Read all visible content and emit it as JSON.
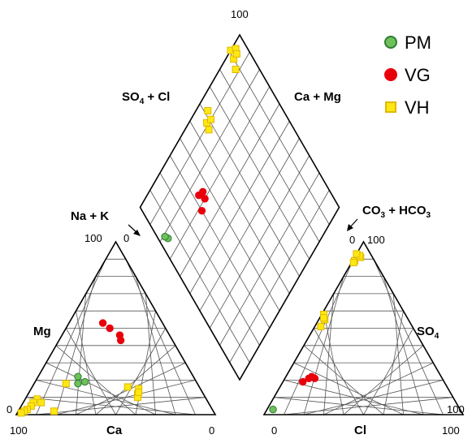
{
  "chart_data": {
    "type": "scatter",
    "title": "",
    "legend": {
      "position": "top-right",
      "items": [
        {
          "label": "PM",
          "marker": "circle",
          "color": "#6ec15a",
          "edge": "#2e7d32"
        },
        {
          "label": "VG",
          "marker": "circle",
          "color": "#e8000b",
          "edge": "#e8000b"
        },
        {
          "label": "VH",
          "marker": "square",
          "color": "#ffe812",
          "edge": "#e0b800"
        }
      ]
    },
    "labels": {
      "diamond_top_left": "SO",
      "diamond_top_left_sub": "4",
      "diamond_top_left_tail": " + Cl",
      "diamond_top_right": "Ca + Mg",
      "na_k": "Na + K",
      "co3_pre": "CO",
      "co3_sub": "3",
      "co3_mid": " + HCO",
      "co3_sub2": "3",
      "mg": "Mg",
      "ca": "Ca",
      "cl": "Cl",
      "so4": "SO",
      "so4_sub": "4"
    },
    "ticks": {
      "diamond_top": "100",
      "cation_top": "100",
      "cation_top_zero": "0",
      "cation_left_zero": "0",
      "cation_bottom_left": "100",
      "cation_bottom_right": "0",
      "anion_top": "100",
      "anion_top_zero": "0",
      "anion_right": "100",
      "anion_bottom_left": "0",
      "anion_bottom_right": "100"
    },
    "grid": true,
    "cation_triangle": {
      "components": [
        "Ca",
        "Mg",
        "Na + K"
      ],
      "series": [
        {
          "name": "PM",
          "points": [
            {
              "Ca": 56,
              "Mg": 19,
              "NaK": 25
            },
            {
              "Ca": 60,
              "Mg": 18,
              "NaK": 22
            },
            {
              "Ca": 58,
              "Mg": 22,
              "NaK": 20
            }
          ]
        },
        {
          "name": "VG",
          "points": [
            {
              "Ca": 30,
              "Mg": 53,
              "NaK": 17
            },
            {
              "Ca": 28,
              "Mg": 50,
              "NaK": 22
            },
            {
              "Ca": 25,
              "Mg": 46,
              "NaK": 29
            },
            {
              "Ca": 26,
              "Mg": 43,
              "NaK": 31
            }
          ]
        },
        {
          "name": "VH",
          "points": [
            {
              "Ca": 66,
              "Mg": 18,
              "NaK": 16
            },
            {
              "Ca": 36,
              "Mg": 16,
              "NaK": 48
            },
            {
              "Ca": 33,
              "Mg": 12,
              "NaK": 55
            },
            {
              "Ca": 31,
              "Mg": 15,
              "NaK": 54
            },
            {
              "Ca": 34,
              "Mg": 10,
              "NaK": 56
            },
            {
              "Ca": 32,
              "Mg": 13,
              "NaK": 55
            },
            {
              "Ca": 85,
              "Mg": 9,
              "NaK": 6
            },
            {
              "Ca": 88,
              "Mg": 7,
              "NaK": 5
            },
            {
              "Ca": 90,
              "Mg": 5,
              "NaK": 5
            },
            {
              "Ca": 93,
              "Mg": 3,
              "NaK": 4
            },
            {
              "Ca": 95,
              "Mg": 2,
              "NaK": 3
            },
            {
              "Ca": 97,
              "Mg": 1,
              "NaK": 2
            },
            {
              "Ca": 80,
              "Mg": 2,
              "NaK": 18
            },
            {
              "Ca": 84,
              "Mg": 7,
              "NaK": 9
            }
          ]
        }
      ]
    },
    "anion_triangle": {
      "components": [
        "Cl",
        "SO4",
        "CO3 + HCO3"
      ],
      "series": [
        {
          "name": "PM",
          "points": [
            {
              "Cl": 3,
              "SO4": 3,
              "CO3": 94
            }
          ]
        },
        {
          "name": "VG",
          "points": [
            {
              "Cl": 10,
              "SO4": 19,
              "CO3": 71
            },
            {
              "Cl": 12,
              "SO4": 21,
              "CO3": 67
            },
            {
              "Cl": 13,
              "SO4": 22,
              "CO3": 65
            },
            {
              "Cl": 15,
              "SO4": 21,
              "CO3": 64
            }
          ]
        },
        {
          "name": "VH",
          "points": [
            {
              "Cl": 1,
              "SO4": 89,
              "CO3": 10
            },
            {
              "Cl": 3,
              "SO4": 91,
              "CO3": 6
            },
            {
              "Cl": 2,
              "SO4": 92,
              "CO3": 6
            },
            {
              "Cl": 0,
              "SO4": 93,
              "CO3": 7
            },
            {
              "Cl": 1,
              "SO4": 88,
              "CO3": 11
            },
            {
              "Cl": 1,
              "SO4": 58,
              "CO3": 41
            },
            {
              "Cl": 3,
              "SO4": 55,
              "CO3": 42
            },
            {
              "Cl": 2,
              "SO4": 56,
              "CO3": 42
            },
            {
              "Cl": 3,
              "SO4": 51,
              "CO3": 46
            }
          ]
        }
      ]
    },
    "diamond": {
      "axes": [
        "SO4 + Cl",
        "Ca + Mg"
      ],
      "series": [
        {
          "name": "PM",
          "points": [
            {
              "SO4Cl": 5,
              "CaMg": 77
            },
            {
              "SO4Cl": 4,
              "CaMg": 79
            }
          ]
        },
        {
          "name": "VG",
          "points": [
            {
              "SO4Cl": 30,
              "CaMg": 68
            },
            {
              "SO4Cl": 33,
              "CaMg": 74
            },
            {
              "SO4Cl": 35,
              "CaMg": 70
            },
            {
              "SO4Cl": 36,
              "CaMg": 73
            }
          ]
        },
        {
          "name": "VH",
          "points": [
            {
              "SO4Cl": 91,
              "CaMg": 100
            },
            {
              "SO4Cl": 94,
              "CaMg": 98
            },
            {
              "SO4Cl": 90,
              "CaMg": 96
            },
            {
              "SO4Cl": 93,
              "CaMg": 96
            },
            {
              "SO4Cl": 88,
              "CaMg": 92
            },
            {
              "SO4Cl": 62,
              "CaMg": 94
            },
            {
              "SO4Cl": 58,
              "CaMg": 91
            },
            {
              "SO4Cl": 61,
              "CaMg": 90
            },
            {
              "SO4Cl": 57,
              "CaMg": 88
            }
          ]
        }
      ]
    }
  }
}
